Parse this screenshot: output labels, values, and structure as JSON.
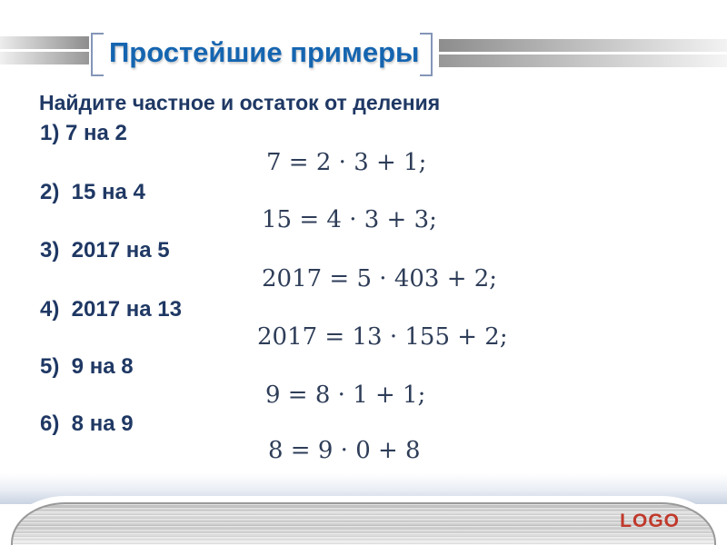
{
  "slide": {
    "title": "Простейшие примеры",
    "prompt": "Найдите частное и остаток от деления",
    "problems": [
      {
        "label": "1) 7 на 2",
        "equation": "7 = 2 · 3 + 1;"
      },
      {
        "label": "2)  15 на 4",
        "equation": "15 = 4 · 3 + 3;"
      },
      {
        "label": "3)  2017 на 5",
        "equation": "2017 = 5 · 403 + 2;"
      },
      {
        "label": "4)  2017 на 13",
        "equation": "2017 = 13 · 155 + 2;"
      },
      {
        "label": "5)  9 на 8",
        "equation": "9 = 8 · 1 + 1;"
      },
      {
        "label": "6)  8 на 9",
        "equation": "8 = 9 · 0 + 8"
      }
    ],
    "logo_text": "LOGO",
    "colors": {
      "title_blue": "#1565b0",
      "body_navy": "#1f3864",
      "equation_navy": "#2e3d58",
      "bracket_gray_blue": "#8496b8",
      "logo_red": "#c0392b",
      "footer_blue_tint": "#c9d3e2"
    }
  }
}
